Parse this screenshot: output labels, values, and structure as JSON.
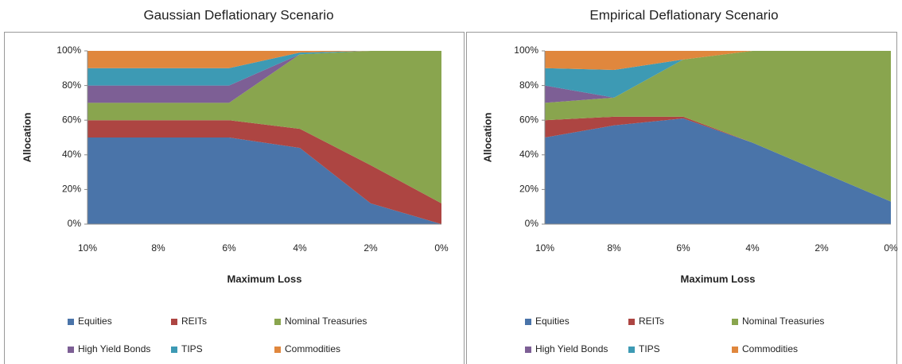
{
  "chart_data": [
    {
      "type": "area",
      "title": "Gaussian Deflationary Scenario",
      "x_label": "Maximum Loss",
      "y_label": "Allocation",
      "categories": [
        "10%",
        "8%",
        "6%",
        "4%",
        "2%",
        "0%"
      ],
      "ylim": [
        0,
        100
      ],
      "yticks": [
        {
          "value": 0,
          "label": "0%"
        },
        {
          "value": 20,
          "label": "20%"
        },
        {
          "value": 40,
          "label": "40%"
        },
        {
          "value": 60,
          "label": "60%"
        },
        {
          "value": 80,
          "label": "80%"
        },
        {
          "value": 100,
          "label": "100%"
        }
      ],
      "series": [
        {
          "name": "Equities",
          "color": "#4a74a9",
          "values": [
            50,
            50,
            50,
            44,
            12,
            0
          ]
        },
        {
          "name": "REITs",
          "color": "#ad4542",
          "values": [
            10,
            10,
            10,
            11,
            22,
            12
          ]
        },
        {
          "name": "Nominal Treasuries",
          "color": "#89a54e",
          "values": [
            10,
            10,
            10,
            43,
            66,
            88
          ]
        },
        {
          "name": "High Yield Bonds",
          "color": "#7d5f95",
          "values": [
            10,
            10,
            10,
            0,
            0,
            0
          ]
        },
        {
          "name": "TIPS",
          "color": "#3d9ab4",
          "values": [
            10,
            10,
            10,
            1,
            0,
            0
          ]
        },
        {
          "name": "Commodities",
          "color": "#e0873d",
          "values": [
            10,
            10,
            10,
            1,
            0,
            0
          ]
        }
      ]
    },
    {
      "type": "area",
      "title": "Empirical Deflationary Scenario",
      "x_label": "Maximum Loss",
      "y_label": "Allocation",
      "categories": [
        "10%",
        "8%",
        "6%",
        "4%",
        "2%",
        "0%"
      ],
      "ylim": [
        0,
        100
      ],
      "yticks": [
        {
          "value": 0,
          "label": "0%"
        },
        {
          "value": 20,
          "label": "20%"
        },
        {
          "value": 40,
          "label": "40%"
        },
        {
          "value": 60,
          "label": "60%"
        },
        {
          "value": 80,
          "label": "80%"
        },
        {
          "value": 100,
          "label": "100%"
        }
      ],
      "series": [
        {
          "name": "Equities",
          "color": "#4a74a9",
          "values": [
            50,
            57,
            61,
            47,
            30,
            13
          ]
        },
        {
          "name": "REITs",
          "color": "#ad4542",
          "values": [
            10,
            5,
            1,
            0,
            0,
            0
          ]
        },
        {
          "name": "Nominal Treasuries",
          "color": "#89a54e",
          "values": [
            10,
            11,
            33,
            53,
            70,
            87
          ]
        },
        {
          "name": "High Yield Bonds",
          "color": "#7d5f95",
          "values": [
            10,
            0,
            0,
            0,
            0,
            0
          ]
        },
        {
          "name": "TIPS",
          "color": "#3d9ab4",
          "values": [
            10,
            16,
            0,
            0,
            0,
            0
          ]
        },
        {
          "name": "Commodities",
          "color": "#e0873d",
          "values": [
            10,
            11,
            5,
            0,
            0,
            0
          ]
        }
      ]
    }
  ]
}
